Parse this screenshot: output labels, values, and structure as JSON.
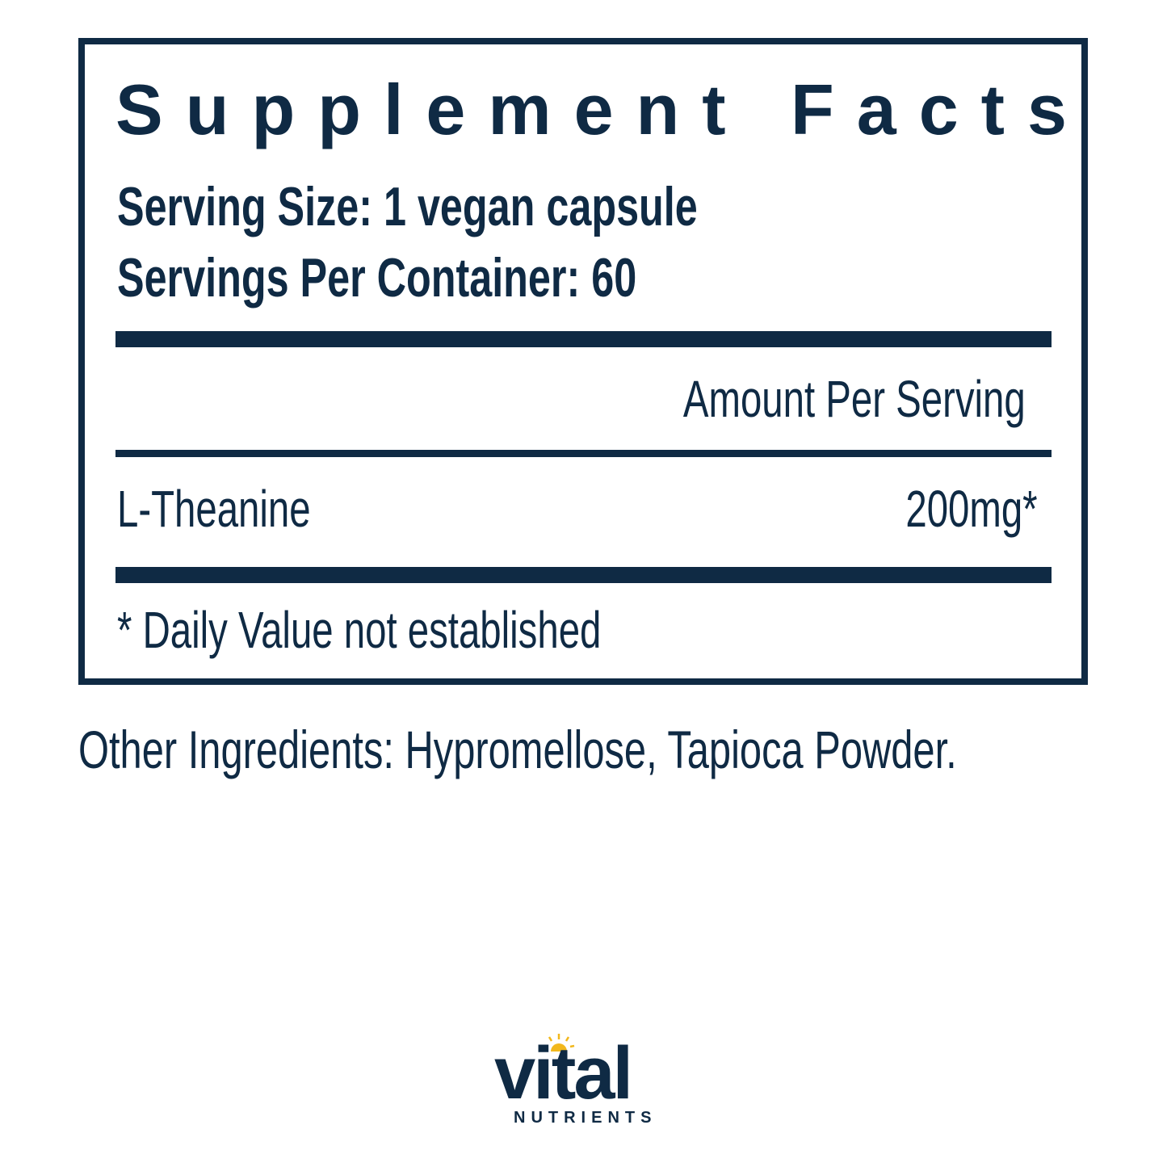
{
  "label": {
    "title": "Supplement Facts",
    "serving_size": "Serving Size: 1 vegan capsule",
    "servings_per_container": "Servings Per Container: 60",
    "amount_header": "Amount Per Serving",
    "ingredients": [
      {
        "name": "L-Theanine",
        "amount": "200mg*"
      }
    ],
    "footnote": "* Daily Value not established"
  },
  "other_ingredients": "Other Ingredients: Hypromellose, Tapioca Powder.",
  "logo": {
    "word": "vital",
    "subword": "NUTRIENTS",
    "sun_color": "#f2b81c"
  },
  "colors": {
    "navy": "#0f2a44"
  }
}
